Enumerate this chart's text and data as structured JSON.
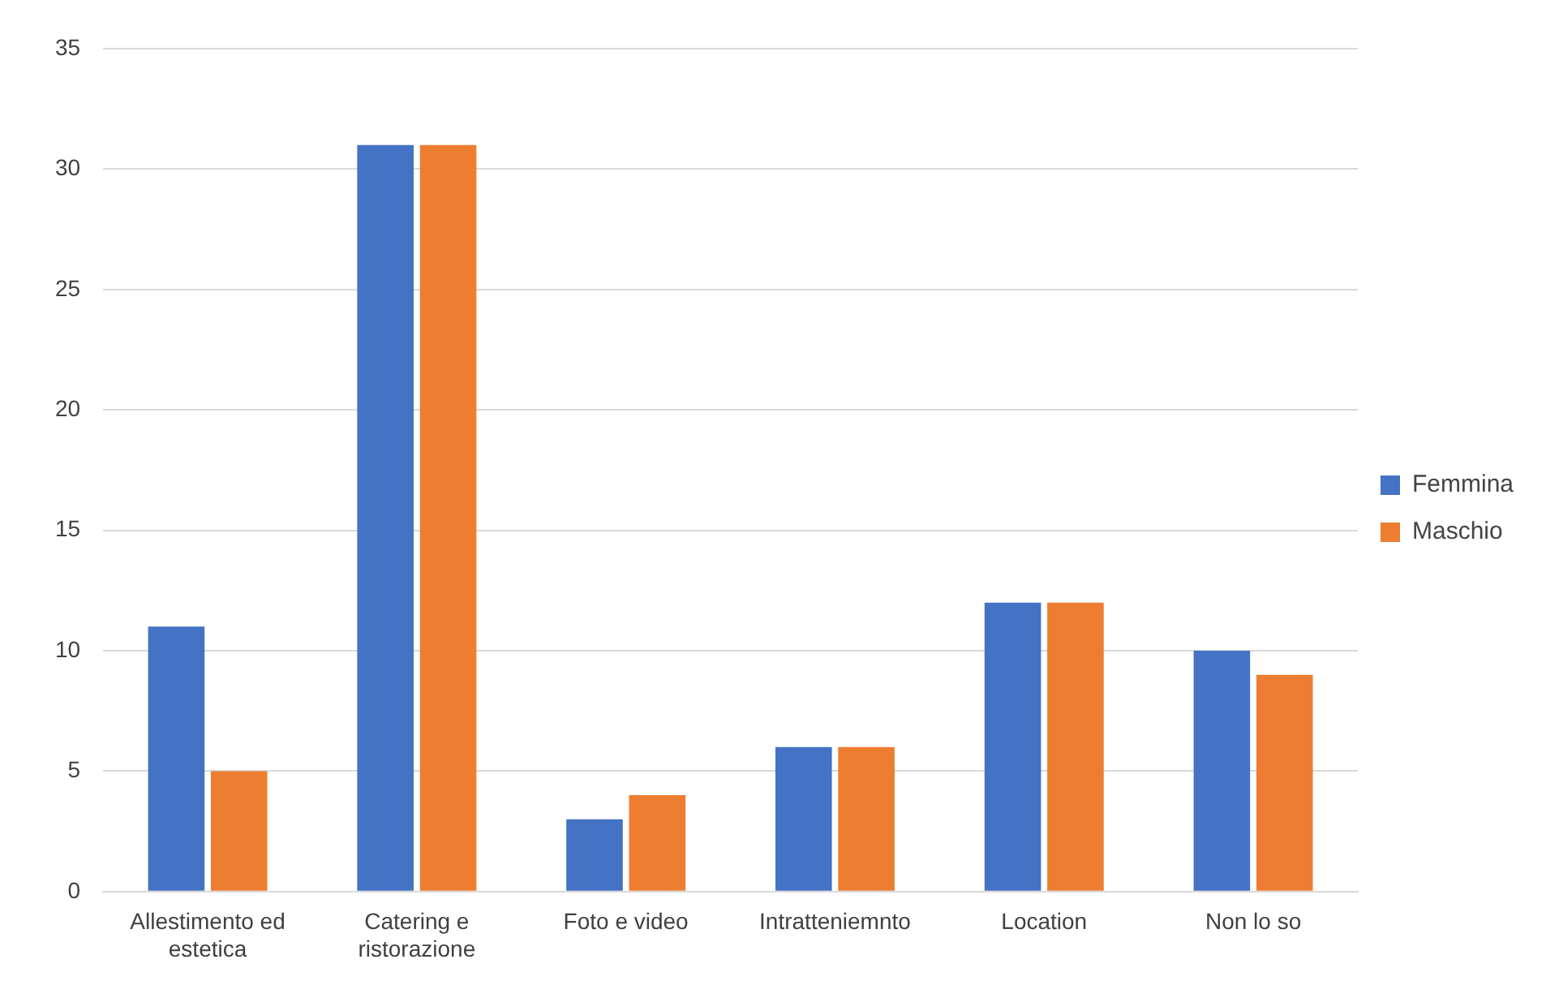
{
  "chart_data": {
    "type": "bar",
    "categories": [
      "Allestimento ed estetica",
      "Catering e ristorazione",
      "Foto e video",
      "Intratteniemnto",
      "Location",
      "Non lo so"
    ],
    "series": [
      {
        "name": "Femmina",
        "color": "#4472c4",
        "values": [
          11,
          31,
          3,
          6,
          12,
          10
        ]
      },
      {
        "name": "Maschio",
        "color": "#ed7d31",
        "values": [
          5,
          31,
          4,
          6,
          12,
          9
        ]
      }
    ],
    "ylim": [
      0,
      35
    ],
    "yticks": [
      0,
      5,
      10,
      15,
      20,
      25,
      30,
      35
    ],
    "grid": "y",
    "legend": "right"
  }
}
